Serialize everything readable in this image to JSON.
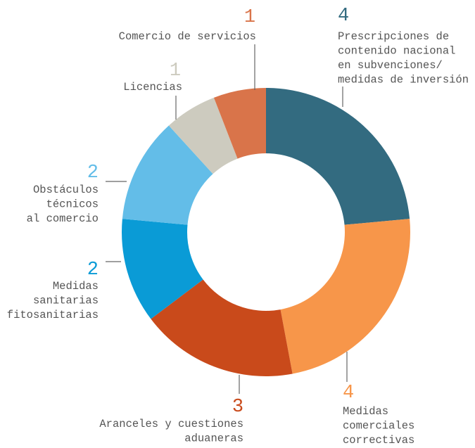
{
  "chart_data": {
    "type": "donut",
    "categories": [
      [
        "Prescripciones de",
        "contenido nacional",
        "en subvenciones/",
        "medidas de inversión"
      ],
      [
        "Medidas",
        "comerciales",
        "correctivas"
      ],
      [
        "Aranceles y cuestiones",
        "aduaneras"
      ],
      [
        "Medidas",
        "sanitarias",
        "y fitosanitarias"
      ],
      [
        "Obstáculos",
        "técnicos",
        "al comercio"
      ],
      [
        "Licencias"
      ],
      [
        "Comercio de servicios"
      ]
    ],
    "values": [
      4,
      4,
      3,
      2,
      2,
      1,
      1
    ],
    "colors": [
      "#336b80",
      "#f7964a",
      "#c94a1b",
      "#0a9bd6",
      "#63bde8",
      "#cdcbbf",
      "#d9744a"
    ]
  }
}
